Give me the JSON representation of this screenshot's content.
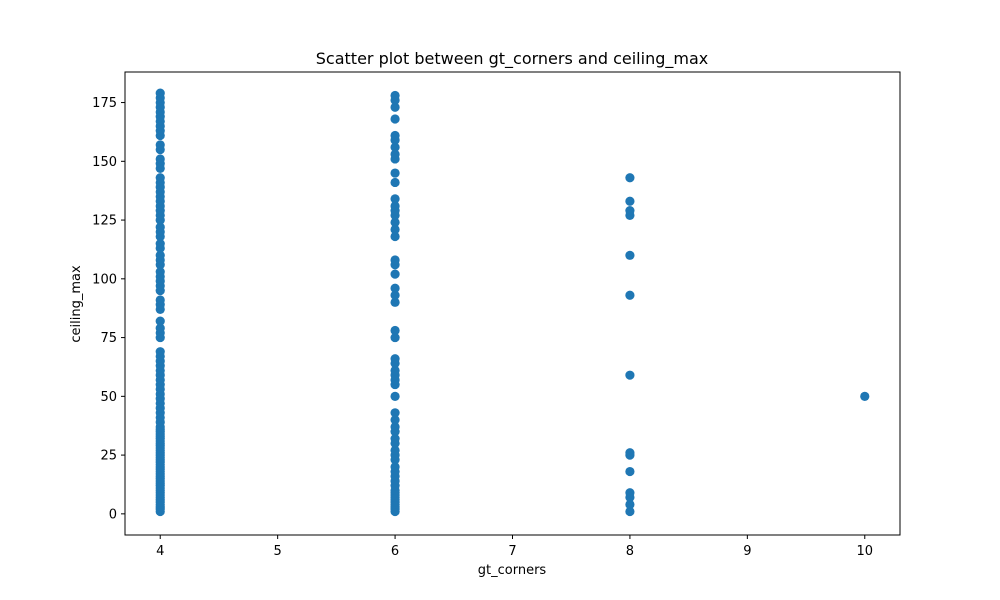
{
  "chart_data": {
    "type": "scatter",
    "title": "Scatter plot between gt_corners and ceiling_max",
    "xlabel": "gt_corners",
    "ylabel": "ceiling_max",
    "xlim": [
      3.7,
      10.3
    ],
    "ylim": [
      -9,
      188
    ],
    "xticks": [
      4,
      5,
      6,
      7,
      8,
      9,
      10
    ],
    "yticks": [
      0,
      25,
      50,
      75,
      100,
      125,
      150,
      175
    ],
    "grid": false,
    "legend": "none",
    "marker_color": "#1f77b4",
    "points": [
      [
        4,
        1
      ],
      [
        4,
        2
      ],
      [
        4,
        3
      ],
      [
        4,
        4
      ],
      [
        4,
        5
      ],
      [
        4,
        6
      ],
      [
        4,
        7
      ],
      [
        4,
        8
      ],
      [
        4,
        9
      ],
      [
        4,
        10
      ],
      [
        4,
        11
      ],
      [
        4,
        12
      ],
      [
        4,
        13
      ],
      [
        4,
        14
      ],
      [
        4,
        15
      ],
      [
        4,
        16
      ],
      [
        4,
        17
      ],
      [
        4,
        18
      ],
      [
        4,
        19
      ],
      [
        4,
        20
      ],
      [
        4,
        21
      ],
      [
        4,
        22
      ],
      [
        4,
        23
      ],
      [
        4,
        24
      ],
      [
        4,
        25
      ],
      [
        4,
        26
      ],
      [
        4,
        27
      ],
      [
        4,
        28
      ],
      [
        4,
        29
      ],
      [
        4,
        30
      ],
      [
        4,
        31
      ],
      [
        4,
        32
      ],
      [
        4,
        33
      ],
      [
        4,
        34
      ],
      [
        4,
        35
      ],
      [
        4,
        36
      ],
      [
        4,
        37
      ],
      [
        4,
        39
      ],
      [
        4,
        41
      ],
      [
        4,
        43
      ],
      [
        4,
        45
      ],
      [
        4,
        47
      ],
      [
        4,
        49
      ],
      [
        4,
        51
      ],
      [
        4,
        53
      ],
      [
        4,
        55
      ],
      [
        4,
        57
      ],
      [
        4,
        59
      ],
      [
        4,
        61
      ],
      [
        4,
        63
      ],
      [
        4,
        65
      ],
      [
        4,
        67
      ],
      [
        4,
        69
      ],
      [
        4,
        75
      ],
      [
        4,
        77
      ],
      [
        4,
        79
      ],
      [
        4,
        82
      ],
      [
        4,
        87
      ],
      [
        4,
        89
      ],
      [
        4,
        91
      ],
      [
        4,
        95
      ],
      [
        4,
        97
      ],
      [
        4,
        99
      ],
      [
        4,
        101
      ],
      [
        4,
        103
      ],
      [
        4,
        106
      ],
      [
        4,
        108
      ],
      [
        4,
        110
      ],
      [
        4,
        113
      ],
      [
        4,
        115
      ],
      [
        4,
        118
      ],
      [
        4,
        120
      ],
      [
        4,
        122
      ],
      [
        4,
        125
      ],
      [
        4,
        127
      ],
      [
        4,
        129
      ],
      [
        4,
        131
      ],
      [
        4,
        133
      ],
      [
        4,
        135
      ],
      [
        4,
        137
      ],
      [
        4,
        139
      ],
      [
        4,
        141
      ],
      [
        4,
        143
      ],
      [
        4,
        147
      ],
      [
        4,
        149
      ],
      [
        4,
        151
      ],
      [
        4,
        155
      ],
      [
        4,
        157
      ],
      [
        4,
        161
      ],
      [
        4,
        163
      ],
      [
        4,
        165
      ],
      [
        4,
        167
      ],
      [
        4,
        169
      ],
      [
        4,
        171
      ],
      [
        4,
        173
      ],
      [
        4,
        175
      ],
      [
        4,
        177
      ],
      [
        4,
        179
      ],
      [
        6,
        1
      ],
      [
        6,
        2
      ],
      [
        6,
        3
      ],
      [
        6,
        4
      ],
      [
        6,
        5
      ],
      [
        6,
        6
      ],
      [
        6,
        7
      ],
      [
        6,
        8
      ],
      [
        6,
        9
      ],
      [
        6,
        10
      ],
      [
        6,
        12
      ],
      [
        6,
        14
      ],
      [
        6,
        16
      ],
      [
        6,
        18
      ],
      [
        6,
        20
      ],
      [
        6,
        23
      ],
      [
        6,
        25
      ],
      [
        6,
        27
      ],
      [
        6,
        30
      ],
      [
        6,
        32
      ],
      [
        6,
        35
      ],
      [
        6,
        37
      ],
      [
        6,
        40
      ],
      [
        6,
        43
      ],
      [
        6,
        50
      ],
      [
        6,
        55
      ],
      [
        6,
        57
      ],
      [
        6,
        59
      ],
      [
        6,
        61
      ],
      [
        6,
        64
      ],
      [
        6,
        66
      ],
      [
        6,
        75
      ],
      [
        6,
        78
      ],
      [
        6,
        90
      ],
      [
        6,
        93
      ],
      [
        6,
        96
      ],
      [
        6,
        102
      ],
      [
        6,
        106
      ],
      [
        6,
        108
      ],
      [
        6,
        118
      ],
      [
        6,
        121
      ],
      [
        6,
        124
      ],
      [
        6,
        127
      ],
      [
        6,
        129
      ],
      [
        6,
        131
      ],
      [
        6,
        134
      ],
      [
        6,
        141
      ],
      [
        6,
        145
      ],
      [
        6,
        151
      ],
      [
        6,
        153
      ],
      [
        6,
        156
      ],
      [
        6,
        159
      ],
      [
        6,
        161
      ],
      [
        6,
        168
      ],
      [
        6,
        173
      ],
      [
        6,
        176
      ],
      [
        6,
        178
      ],
      [
        8,
        1
      ],
      [
        8,
        4
      ],
      [
        8,
        7
      ],
      [
        8,
        9
      ],
      [
        8,
        18
      ],
      [
        8,
        25
      ],
      [
        8,
        26
      ],
      [
        8,
        59
      ],
      [
        8,
        93
      ],
      [
        8,
        110
      ],
      [
        8,
        127
      ],
      [
        8,
        129
      ],
      [
        8,
        133
      ],
      [
        8,
        143
      ],
      [
        10,
        50
      ]
    ]
  }
}
